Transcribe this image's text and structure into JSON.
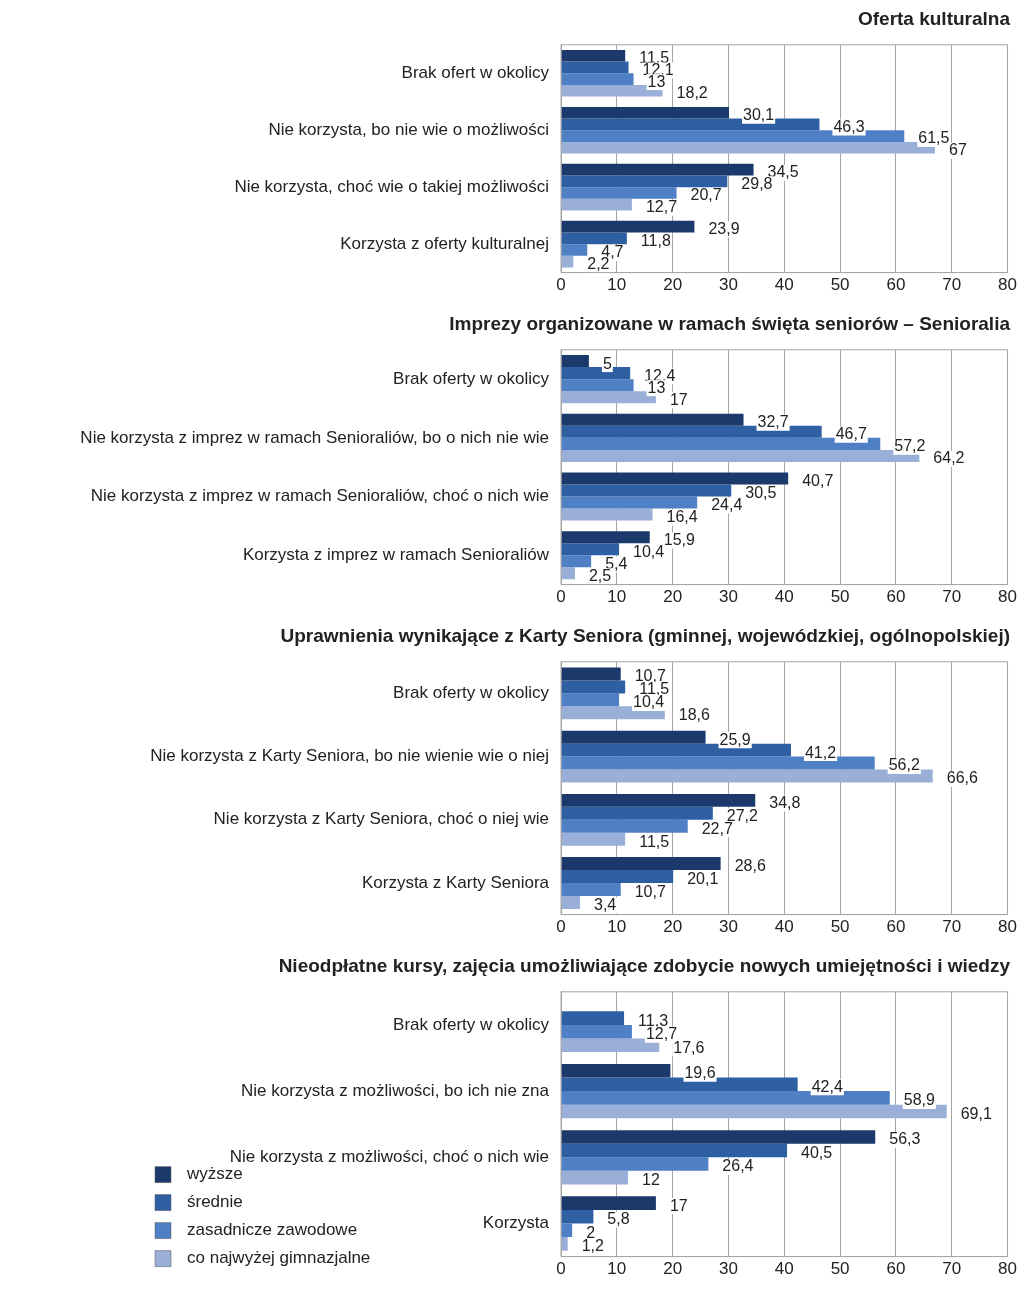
{
  "chart_data": [
    {
      "type": "bar",
      "orientation": "horizontal",
      "title": "Oferta kulturalna",
      "categories": [
        "Brak ofert w okolicy",
        "Nie korzysta, bo nie wie o możliwości",
        "Nie korzysta, choć wie o takiej możliwości",
        "Korzysta z oferty kulturalnej"
      ],
      "series": [
        {
          "color": "#1b3a6b",
          "values": [
            11.5,
            30.1,
            34.5,
            23.9
          ],
          "value_labels": [
            "11,5",
            "30,1",
            "34,5",
            "23,9"
          ]
        },
        {
          "color": "#2e5fa3",
          "values": [
            12.1,
            46.3,
            29.8,
            11.8
          ],
          "value_labels": [
            "12,1",
            "46,3",
            "29,8",
            "11,8"
          ]
        },
        {
          "color": "#4f7fc4",
          "values": [
            13,
            61.5,
            20.7,
            4.7
          ],
          "value_labels": [
            "13",
            "61,5",
            "20,7",
            "4,7"
          ]
        },
        {
          "color": "#9aafd8",
          "values": [
            18.2,
            67,
            12.7,
            2.2
          ],
          "value_labels": [
            "18,2",
            "67",
            "12,7",
            "2,2"
          ]
        }
      ],
      "xlim": [
        0,
        80
      ],
      "xticks": [
        0,
        10,
        20,
        30,
        40,
        50,
        60,
        70,
        80
      ],
      "grid": "x",
      "legend": false
    },
    {
      "type": "bar",
      "orientation": "horizontal",
      "title": "Imprezy organizowane w ramach święta seniorów – Senioralia",
      "categories": [
        "Brak oferty w okolicy",
        "Nie korzysta z imprez w ramach Senioraliów, bo o nich nie wie",
        "Nie korzysta z imprez w ramach Senioraliów, choć o nich wie",
        "Korzysta z imprez w ramach Senioraliów"
      ],
      "series": [
        {
          "color": "#1b3a6b",
          "values": [
            5,
            32.7,
            40.7,
            15.9
          ],
          "value_labels": [
            "5",
            "32,7",
            "40,7",
            "15,9"
          ]
        },
        {
          "color": "#2e5fa3",
          "values": [
            12.4,
            46.7,
            30.5,
            10.4
          ],
          "value_labels": [
            "12,4",
            "46,7",
            "30,5",
            "10,4"
          ]
        },
        {
          "color": "#4f7fc4",
          "values": [
            13,
            57.2,
            24.4,
            5.4
          ],
          "value_labels": [
            "13",
            "57,2",
            "24,4",
            "5,4"
          ]
        },
        {
          "color": "#9aafd8",
          "values": [
            17,
            64.2,
            16.4,
            2.5
          ],
          "value_labels": [
            "17",
            "64,2",
            "16,4",
            "2,5"
          ]
        }
      ],
      "xlim": [
        0,
        80
      ],
      "xticks": [
        0,
        10,
        20,
        30,
        40,
        50,
        60,
        70,
        80
      ],
      "grid": "x",
      "legend": false
    },
    {
      "type": "bar",
      "orientation": "horizontal",
      "title": "Uprawnienia wynikające z Karty Seniora (gminnej, wojewódzkiej, ogólnopolskiej)",
      "categories": [
        "Brak oferty w okolicy",
        "Nie korzysta z Karty Seniora, bo nie wienie wie o niej",
        "Nie korzysta z Karty Seniora, choć o niej wie",
        "Korzysta z Karty Seniora"
      ],
      "series": [
        {
          "color": "#1b3a6b",
          "values": [
            10.7,
            25.9,
            34.8,
            28.6
          ],
          "value_labels": [
            "10,7",
            "25,9",
            "34,8",
            "28,6"
          ]
        },
        {
          "color": "#2e5fa3",
          "values": [
            11.5,
            41.2,
            27.2,
            20.1
          ],
          "value_labels": [
            "11,5",
            "41,2",
            "27,2",
            "20,1"
          ]
        },
        {
          "color": "#4f7fc4",
          "values": [
            10.4,
            56.2,
            22.7,
            10.7
          ],
          "value_labels": [
            "10,4",
            "56,2",
            "22,7",
            "10,7"
          ]
        },
        {
          "color": "#9aafd8",
          "values": [
            18.6,
            66.6,
            11.5,
            3.4
          ],
          "value_labels": [
            "18,6",
            "66,6",
            "11,5",
            "3,4"
          ]
        }
      ],
      "xlim": [
        0,
        80
      ],
      "xticks": [
        0,
        10,
        20,
        30,
        40,
        50,
        60,
        70,
        80
      ],
      "grid": "x",
      "legend": false
    },
    {
      "type": "bar",
      "orientation": "horizontal",
      "title": "Nieodpłatne kursy, zajęcia umożliwiające zdobycie nowych umiejętności i wiedzy",
      "categories": [
        "Brak oferty w okolicy",
        "Nie korzysta z możliwości, bo ich nie zna",
        "Nie korzysta z możliwości, choć o nich wie",
        "Korzysta"
      ],
      "series": [
        {
          "name": "wyższe",
          "color": "#1b3a6b",
          "values": [
            null,
            19.6,
            56.3,
            17
          ],
          "value_labels": [
            null,
            "19,6",
            "56,3",
            "17"
          ]
        },
        {
          "name": "średnie",
          "color": "#2e5fa3",
          "values": [
            11.3,
            42.4,
            40.5,
            5.8
          ],
          "value_labels": [
            "11,3",
            "42,4",
            "40,5",
            "5,8"
          ]
        },
        {
          "name": "zasadnicze zawodowe",
          "color": "#4f7fc4",
          "values": [
            12.7,
            58.9,
            26.4,
            2
          ],
          "value_labels": [
            "12,7",
            "58,9",
            "26,4",
            "2"
          ]
        },
        {
          "name": "co najwyżej gimnazjalne",
          "color": "#9aafd8",
          "values": [
            17.6,
            69.1,
            12,
            1.2
          ],
          "value_labels": [
            "17,6",
            "69,1",
            "12",
            "1,2"
          ]
        }
      ],
      "xlim": [
        0,
        80
      ],
      "xticks": [
        0,
        10,
        20,
        30,
        40,
        50,
        60,
        70,
        80
      ],
      "grid": "x",
      "legend": "bottom left"
    }
  ]
}
